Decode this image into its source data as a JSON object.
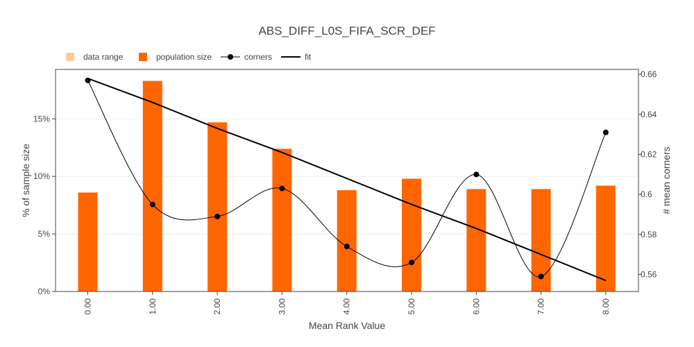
{
  "chart_data": {
    "type": "bar",
    "title": "ABS_DIFF_L0S_FIFA_SCR_DEF",
    "xlabel": "Mean Rank Value",
    "ylabel_left": "% of sample size",
    "ylabel_right": "# mean corners",
    "categories": [
      "0.00",
      "1.00",
      "2.00",
      "3.00",
      "4.00",
      "5.00",
      "6.00",
      "7.00",
      "8.00"
    ],
    "y_left_ticks": [
      "0%",
      "5%",
      "10%",
      "15%"
    ],
    "y_right_ticks": [
      "0.56",
      "0.58",
      "0.6",
      "0.62",
      "0.64",
      "0.66"
    ],
    "ylim_left": [
      0,
      19.3
    ],
    "ylim_right": [
      0.5515,
      0.6625
    ],
    "grid": true,
    "legend_position": "top-left",
    "legend": [
      {
        "label": "data range",
        "kind": "swatch-light"
      },
      {
        "label": "population size",
        "kind": "swatch"
      },
      {
        "label": "corners",
        "kind": "line-marker"
      },
      {
        "label": "fit",
        "kind": "line-thick"
      }
    ],
    "series": [
      {
        "name": "population size",
        "axis": "left",
        "kind": "bar",
        "color": "#ff6600",
        "values": [
          8.6,
          18.3,
          14.7,
          12.4,
          8.8,
          9.8,
          8.9,
          8.9,
          9.2
        ]
      },
      {
        "name": "corners",
        "axis": "right",
        "kind": "line",
        "color": "#000000",
        "values": [
          0.657,
          0.595,
          0.589,
          0.603,
          0.574,
          0.566,
          0.61,
          0.559,
          0.631
        ]
      },
      {
        "name": "fit",
        "axis": "right",
        "kind": "line",
        "color": "#000000",
        "values": [
          0.658,
          0.646,
          0.633,
          0.621,
          0.608,
          0.595,
          0.583,
          0.57,
          0.557
        ]
      }
    ],
    "data_range_color": "#ffcc99"
  }
}
